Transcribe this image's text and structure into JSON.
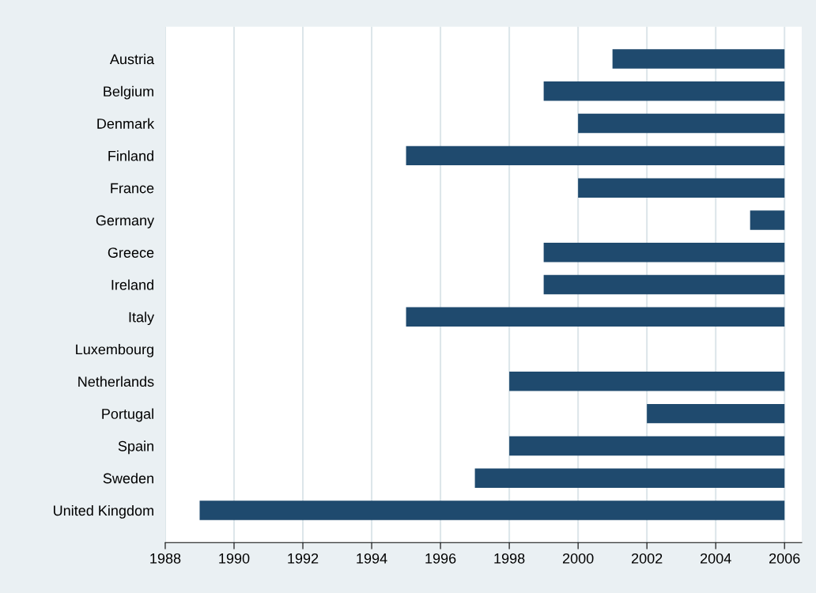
{
  "chart_data": {
    "type": "bar",
    "orientation": "horizontal",
    "categories": [
      "Austria",
      "Belgium",
      "Denmark",
      "Finland",
      "France",
      "Germany",
      "Greece",
      "Ireland",
      "Italy",
      "Luxembourg",
      "Netherlands",
      "Portugal",
      "Spain",
      "Sweden",
      "United Kingdom"
    ],
    "base": [
      2001,
      1999,
      2000,
      1995,
      2000,
      2005,
      1999,
      1999,
      1995,
      null,
      1998,
      2002,
      1998,
      1997,
      1989
    ],
    "values": [
      5,
      7,
      6,
      11,
      6,
      1,
      7,
      7,
      11,
      null,
      8,
      4,
      8,
      9,
      17
    ],
    "color": "#1f4a6e",
    "xlim": [
      1988,
      2006.5
    ],
    "xticks": [
      1988,
      1990,
      1992,
      1994,
      1996,
      1998,
      2000,
      2002,
      2004,
      2006
    ],
    "grid": "x",
    "legend": false
  }
}
